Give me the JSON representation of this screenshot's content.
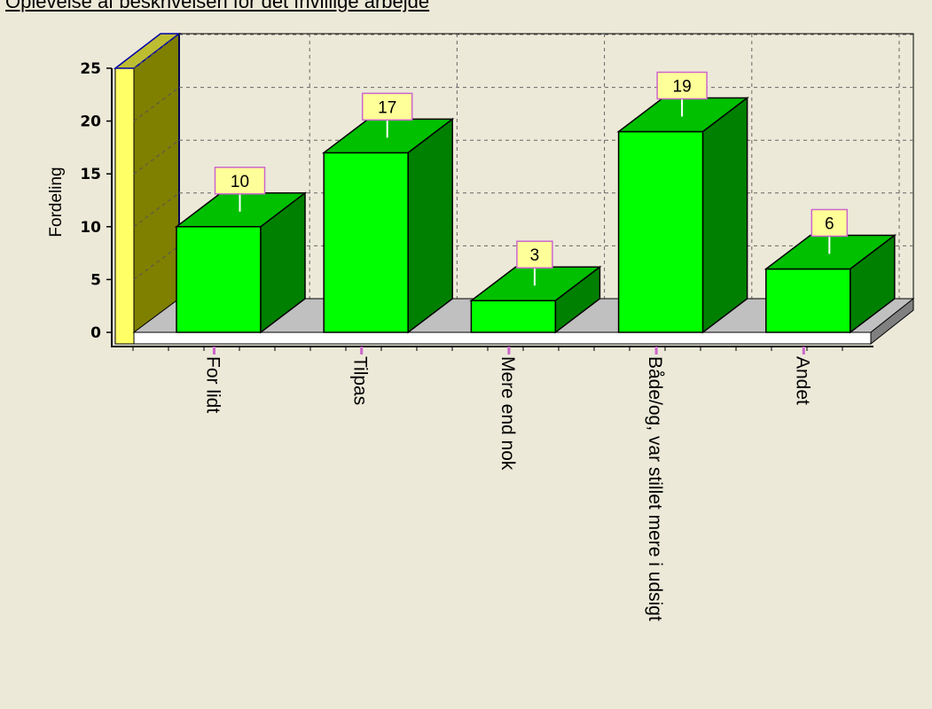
{
  "page": {
    "title": "Oplevelse af beskrivelsen for det frivillige arbejde"
  },
  "colors": {
    "background": "#ece9d8",
    "bar_front": "#00ff00",
    "bar_top": "#00c000",
    "bar_side": "#008000",
    "back_wall": "#7f7f00",
    "wall_edge": "#ffff66",
    "floor": "#c0c0c0",
    "label_box": "#ffff99"
  },
  "chart_data": {
    "type": "bar",
    "categories": [
      "For lidt",
      "Tilpas",
      "Mere end nok",
      "Både/og, var stillet mere i udsigt",
      "Andet"
    ],
    "values": [
      10,
      17,
      3,
      19,
      6
    ],
    "data_labels": [
      "10",
      "17",
      "3",
      "19",
      "6"
    ],
    "title": "Oplevelse af beskrivelsen for det frivillige arbejde",
    "xlabel": "",
    "ylabel": "Fordeling",
    "ylim": [
      0,
      25
    ],
    "yticks": [
      0,
      5,
      10,
      15,
      20,
      25
    ],
    "ytick_labels": [
      "0",
      "5",
      "10",
      "15",
      "20",
      "25"
    ],
    "grid": true,
    "style": "3d"
  }
}
